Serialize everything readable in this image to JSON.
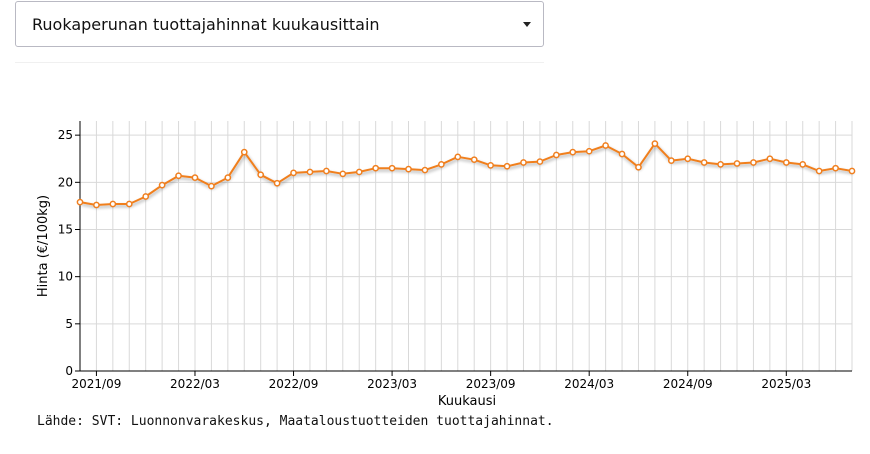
{
  "dropdown": {
    "selected": "Ruokaperunan tuottajahinnat kuukausittain",
    "icon": "chevron-down-icon"
  },
  "source_note": "Lähde: SVT: Luonnonvarakeskus, Maataloustuotteiden tuottajahinnat.",
  "colors": {
    "series": "#f07f1f",
    "grid": "#d9d9d9",
    "axis": "#000000"
  },
  "chart_data": {
    "type": "line",
    "title": "",
    "xlabel": "Kuukausi",
    "ylabel": "Hinta (€/100kg)",
    "ylim": [
      0,
      26.5
    ],
    "yticks": [
      0,
      5,
      10,
      15,
      20,
      25
    ],
    "xtick_labels": [
      "2021/09",
      "2022/03",
      "2022/09",
      "2023/03",
      "2023/09",
      "2024/03",
      "2024/09",
      "2025/03"
    ],
    "grid": true,
    "legend": "none",
    "series": [
      {
        "x": [
          "2021/08",
          "2021/09",
          "2021/10",
          "2021/11",
          "2021/12",
          "2022/01",
          "2022/02",
          "2022/03",
          "2022/04",
          "2022/05",
          "2022/06",
          "2022/07",
          "2022/08",
          "2022/09",
          "2022/10",
          "2022/11",
          "2022/12",
          "2023/01",
          "2023/02",
          "2023/03",
          "2023/04",
          "2023/05",
          "2023/06",
          "2023/07",
          "2023/08",
          "2023/09",
          "2023/10",
          "2023/11",
          "2023/12",
          "2024/01",
          "2024/02",
          "2024/03",
          "2024/04",
          "2024/05",
          "2024/06",
          "2024/07",
          "2024/08",
          "2024/09",
          "2024/10",
          "2024/11",
          "2024/12",
          "2025/01",
          "2025/02",
          "2025/03",
          "2025/04",
          "2025/05",
          "2025/06",
          "2025/07"
        ],
        "values": [
          17.9,
          17.6,
          17.7,
          17.7,
          18.5,
          19.7,
          20.7,
          20.5,
          19.6,
          20.5,
          23.2,
          20.8,
          19.9,
          21.0,
          21.1,
          21.2,
          20.9,
          21.1,
          21.5,
          21.5,
          21.4,
          21.3,
          21.9,
          22.7,
          22.4,
          21.8,
          21.7,
          22.1,
          22.2,
          22.9,
          23.2,
          23.3,
          23.9,
          23.0,
          21.6,
          24.1,
          22.3,
          22.5,
          22.1,
          21.9,
          22.0,
          22.1,
          22.5,
          22.1,
          21.9,
          21.2,
          21.5,
          21.2
        ]
      }
    ]
  }
}
